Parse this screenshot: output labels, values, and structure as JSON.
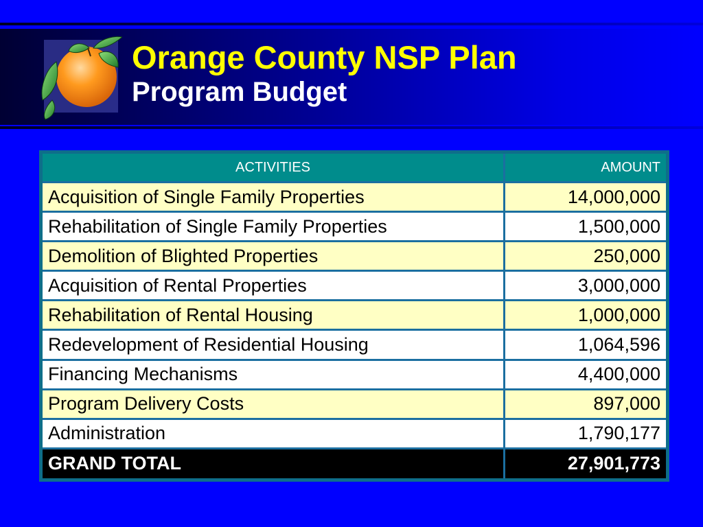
{
  "slide": {
    "title": "Orange County NSP Plan",
    "subtitle": "Program Budget"
  },
  "colors": {
    "background": "#0000FF",
    "title": "#FFFF00",
    "header_row": "#008C8C",
    "row_yellow": "#FFFFC4",
    "row_white": "#FFFFFF",
    "total_row": "#000000"
  },
  "logo": {
    "icon": "orange-fruit-icon"
  },
  "table": {
    "headers": {
      "activities": "ACTIVITIES",
      "amount": "AMOUNT"
    },
    "rows": [
      {
        "activity": "Acquisition of Single Family Properties",
        "amount": "14,000,000"
      },
      {
        "activity": "Rehabilitation of Single Family Properties",
        "amount": "1,500,000"
      },
      {
        "activity": "Demolition of Blighted Properties",
        "amount": "250,000"
      },
      {
        "activity": "Acquisition of Rental Properties",
        "amount": "3,000,000"
      },
      {
        "activity": "Rehabilitation of Rental Housing",
        "amount": "1,000,000"
      },
      {
        "activity": "Redevelopment of Residential Housing",
        "amount": "1,064,596"
      },
      {
        "activity": "Financing Mechanisms",
        "amount": "4,400,000"
      },
      {
        "activity": "Program Delivery Costs",
        "amount": "897,000"
      },
      {
        "activity": "Administration",
        "amount": "1,790,177"
      }
    ],
    "total": {
      "label": "GRAND TOTAL",
      "amount": "27,901,773"
    }
  }
}
